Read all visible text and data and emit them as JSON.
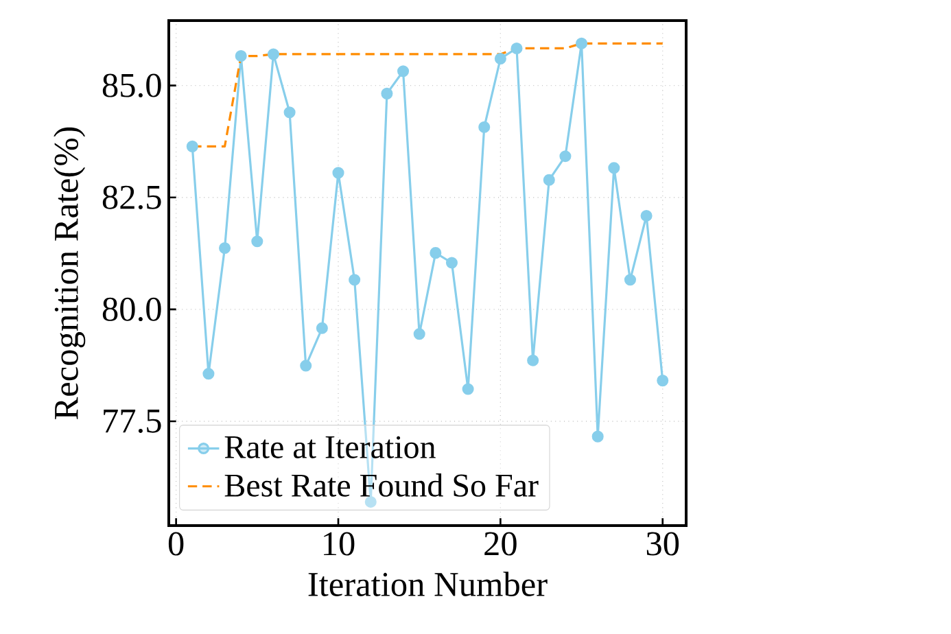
{
  "chart_data": {
    "type": "line",
    "xlabel": "Iteration Number",
    "ylabel": "Recognition Rate(%)",
    "x": [
      1,
      2,
      3,
      4,
      5,
      6,
      7,
      8,
      9,
      10,
      11,
      12,
      13,
      14,
      15,
      16,
      17,
      18,
      19,
      20,
      21,
      22,
      23,
      24,
      25,
      26,
      27,
      28,
      29,
      30
    ],
    "series": [
      {
        "name": "Rate at Iteration",
        "color": "#87ceeb",
        "marker": "circle",
        "line_style": "solid",
        "values": [
          83.64,
          78.56,
          81.37,
          85.66,
          81.52,
          85.7,
          84.4,
          78.74,
          79.58,
          83.05,
          80.66,
          75.7,
          84.82,
          85.32,
          79.45,
          81.26,
          81.04,
          78.22,
          84.07,
          85.6,
          85.83,
          78.86,
          82.89,
          83.42,
          85.94,
          77.16,
          83.16,
          80.66,
          82.09,
          78.41
        ]
      },
      {
        "name": "Best Rate Found So Far",
        "color": "#ff8c00",
        "marker": "none",
        "line_style": "dashed",
        "values": [
          83.64,
          83.64,
          83.64,
          85.66,
          85.66,
          85.7,
          85.7,
          85.7,
          85.7,
          85.7,
          85.7,
          85.7,
          85.7,
          85.7,
          85.7,
          85.7,
          85.7,
          85.7,
          85.7,
          85.7,
          85.83,
          85.83,
          85.83,
          85.83,
          85.94,
          85.94,
          85.94,
          85.94,
          85.94,
          85.94
        ]
      }
    ],
    "xlim": [
      -0.45,
      31.45
    ],
    "ylim": [
      75.17,
      86.45
    ],
    "xticks": [
      0,
      10,
      20,
      30
    ],
    "yticks": [
      77.5,
      {
        "value": 80,
        "label": "80.0"
      },
      82.5,
      {
        "value": 85,
        "label": "85.0"
      }
    ],
    "grid": true,
    "legend": "bottom left"
  }
}
